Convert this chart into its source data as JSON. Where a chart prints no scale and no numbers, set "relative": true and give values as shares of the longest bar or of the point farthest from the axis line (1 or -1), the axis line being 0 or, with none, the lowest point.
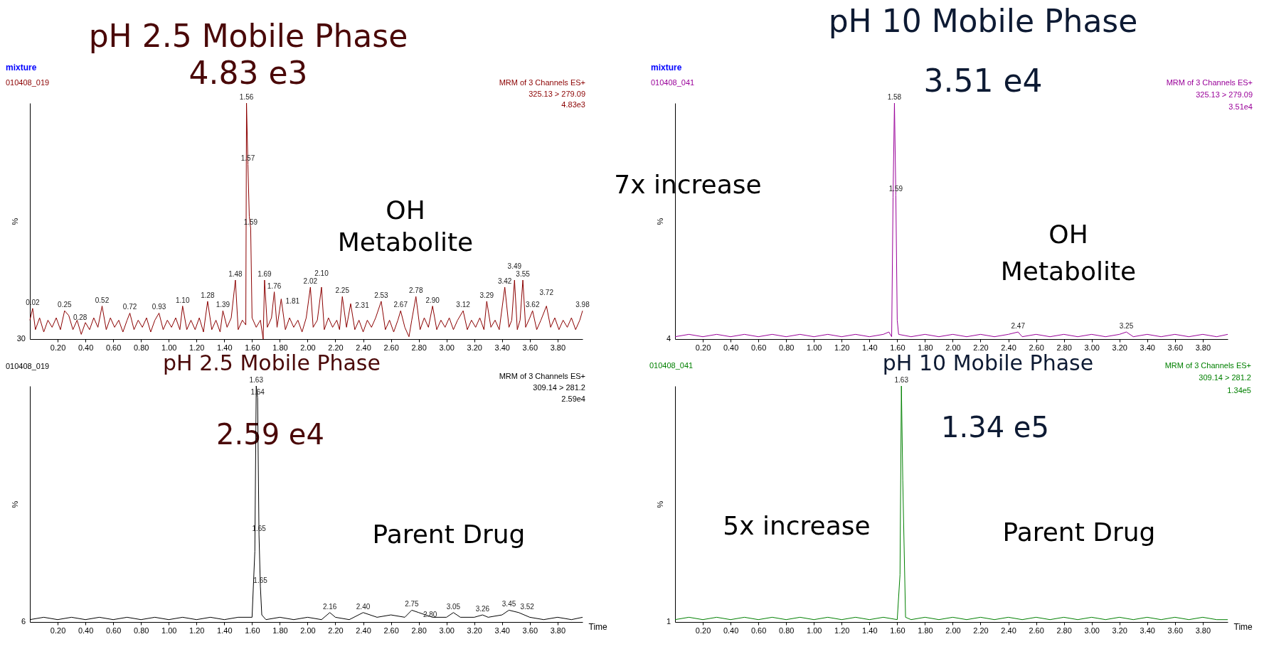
{
  "chart_data": [
    {
      "type": "line",
      "relative": true,
      "ylabel": "%",
      "xlim": [
        0,
        3.98
      ],
      "xticks": [
        {
          "value": 0.2,
          "label": "0.20"
        },
        {
          "value": 0.4,
          "label": "0.40"
        },
        {
          "value": 0.6,
          "label": "0.60"
        },
        {
          "value": 0.8,
          "label": "0.80"
        },
        {
          "value": 1.0,
          "label": "1.00"
        },
        {
          "value": 1.2,
          "label": "1.20"
        },
        {
          "value": 1.4,
          "label": "1.40"
        },
        {
          "value": 1.6,
          "label": "1.60"
        },
        {
          "value": 1.8,
          "label": "1.80"
        },
        {
          "value": 2.0,
          "label": "2.00"
        },
        {
          "value": 2.2,
          "label": "2.20"
        },
        {
          "value": 2.4,
          "label": "2.40"
        },
        {
          "value": 2.6,
          "label": "2.60"
        },
        {
          "value": 2.8,
          "label": "2.80"
        },
        {
          "value": 3.0,
          "label": "3.00"
        },
        {
          "value": 3.2,
          "label": "3.20"
        },
        {
          "value": 3.4,
          "label": "3.40"
        },
        {
          "value": 3.6,
          "label": "3.60"
        },
        {
          "value": 3.8,
          "label": "3.80"
        }
      ],
      "x": [
        0.0,
        0.02,
        0.04,
        0.07,
        0.1,
        0.13,
        0.16,
        0.19,
        0.22,
        0.25,
        0.28,
        0.31,
        0.34,
        0.37,
        0.4,
        0.43,
        0.46,
        0.49,
        0.52,
        0.55,
        0.58,
        0.61,
        0.64,
        0.67,
        0.7,
        0.72,
        0.75,
        0.78,
        0.81,
        0.84,
        0.87,
        0.9,
        0.93,
        0.96,
        0.99,
        1.02,
        1.05,
        1.08,
        1.1,
        1.13,
        1.16,
        1.19,
        1.22,
        1.25,
        1.28,
        1.31,
        1.34,
        1.37,
        1.39,
        1.42,
        1.45,
        1.48,
        1.5,
        1.53,
        1.555,
        1.56,
        1.57,
        1.58,
        1.59,
        1.6,
        1.63,
        1.66,
        1.68,
        1.69,
        1.71,
        1.74,
        1.76,
        1.78,
        1.81,
        1.84,
        1.87,
        1.9,
        1.93,
        1.96,
        1.99,
        2.02,
        2.04,
        2.07,
        2.1,
        2.12,
        2.15,
        2.18,
        2.21,
        2.23,
        2.25,
        2.28,
        2.31,
        2.34,
        2.37,
        2.4,
        2.43,
        2.46,
        2.49,
        2.53,
        2.56,
        2.59,
        2.62,
        2.65,
        2.67,
        2.7,
        2.73,
        2.75,
        2.78,
        2.81,
        2.84,
        2.87,
        2.9,
        2.93,
        2.96,
        2.99,
        3.02,
        3.05,
        3.08,
        3.12,
        3.15,
        3.18,
        3.21,
        3.24,
        3.27,
        3.29,
        3.32,
        3.35,
        3.38,
        3.42,
        3.45,
        3.47,
        3.49,
        3.51,
        3.53,
        3.55,
        3.57,
        3.6,
        3.62,
        3.65,
        3.68,
        3.72,
        3.75,
        3.78,
        3.81,
        3.84,
        3.87,
        3.9,
        3.93,
        3.96,
        3.98
      ],
      "series": [
        {
          "color": "#8b0000",
          "values": [
            0.08,
            0.13,
            0.04,
            0.09,
            0.03,
            0.08,
            0.05,
            0.09,
            0.04,
            0.12,
            0.1,
            0.04,
            0.08,
            0.02,
            0.07,
            0.04,
            0.09,
            0.05,
            0.14,
            0.04,
            0.09,
            0.05,
            0.08,
            0.03,
            0.08,
            0.11,
            0.04,
            0.08,
            0.05,
            0.09,
            0.03,
            0.08,
            0.11,
            0.04,
            0.08,
            0.05,
            0.09,
            0.04,
            0.14,
            0.04,
            0.08,
            0.04,
            0.09,
            0.03,
            0.16,
            0.04,
            0.08,
            0.03,
            0.12,
            0.05,
            0.09,
            0.25,
            0.04,
            0.08,
            0.06,
            1.0,
            0.74,
            0.52,
            0.47,
            0.09,
            0.05,
            0.08,
            0.0,
            0.25,
            0.05,
            0.09,
            0.2,
            0.05,
            0.17,
            0.04,
            0.09,
            0.05,
            0.08,
            0.03,
            0.09,
            0.22,
            0.05,
            0.08,
            0.22,
            0.04,
            0.09,
            0.05,
            0.08,
            0.04,
            0.18,
            0.05,
            0.15,
            0.04,
            0.08,
            0.03,
            0.08,
            0.05,
            0.09,
            0.16,
            0.04,
            0.08,
            0.03,
            0.08,
            0.12,
            0.05,
            0.01,
            0.08,
            0.18,
            0.04,
            0.09,
            0.05,
            0.14,
            0.04,
            0.08,
            0.05,
            0.09,
            0.04,
            0.08,
            0.12,
            0.04,
            0.08,
            0.05,
            0.09,
            0.04,
            0.16,
            0.05,
            0.08,
            0.04,
            0.22,
            0.05,
            0.08,
            0.25,
            0.04,
            0.08,
            0.25,
            0.05,
            0.09,
            0.12,
            0.04,
            0.08,
            0.14,
            0.05,
            0.09,
            0.04,
            0.08,
            0.05,
            0.09,
            0.04,
            0.08,
            0.12
          ]
        }
      ],
      "annotations": [
        "mixture",
        "010408_019",
        "MRM of 3 Channels ES+",
        "325.13 > 279.09",
        "4.83e3",
        "30",
        "pH 2.5 Mobile Phase",
        "4.83 e3",
        "OH",
        "Metabolite",
        {
          "text": "0.02",
          "x": 0.02,
          "y": 0.13
        },
        {
          "text": "0.25",
          "x": 0.25,
          "y": 0.12
        },
        {
          "text": "0.28",
          "x": 0.28,
          "y": 0.1
        },
        {
          "text": "0.52",
          "x": 0.52,
          "y": 0.14
        },
        {
          "text": "0.72",
          "x": 0.72,
          "y": 0.11
        },
        {
          "text": "0.93",
          "x": 0.93,
          "y": 0.11
        },
        {
          "text": "1.10",
          "x": 1.1,
          "y": 0.14
        },
        {
          "text": "1.28",
          "x": 1.28,
          "y": 0.16
        },
        {
          "text": "1.39",
          "x": 1.39,
          "y": 0.12
        },
        {
          "text": "1.48",
          "x": 1.48,
          "y": 0.25
        },
        {
          "text": "1.56",
          "x": 1.56,
          "y": 1.0
        },
        {
          "text": "1.57",
          "x": 1.57,
          "y": 0.74
        },
        {
          "text": "1.59",
          "x": 1.59,
          "y": 0.47
        },
        {
          "text": "1.69",
          "x": 1.69,
          "y": 0.25
        },
        {
          "text": "1.76",
          "x": 1.76,
          "y": 0.2
        },
        {
          "text": "1.81",
          "x": 1.81,
          "y": 0.17
        },
        {
          "text": "2.02",
          "x": 2.02,
          "y": 0.22
        },
        {
          "text": "2.10",
          "x": 2.1,
          "y": 0.22
        },
        {
          "text": "2.25",
          "x": 2.25,
          "y": 0.18
        },
        {
          "text": "2.31",
          "x": 2.31,
          "y": 0.15
        },
        {
          "text": "2.53",
          "x": 2.53,
          "y": 0.16
        },
        {
          "text": "2.67",
          "x": 2.67,
          "y": 0.12
        },
        {
          "text": "2.78",
          "x": 2.78,
          "y": 0.18
        },
        {
          "text": "2.90",
          "x": 2.9,
          "y": 0.14
        },
        {
          "text": "3.12",
          "x": 3.12,
          "y": 0.12
        },
        {
          "text": "3.29",
          "x": 3.29,
          "y": 0.16
        },
        {
          "text": "3.42",
          "x": 3.42,
          "y": 0.22
        },
        {
          "text": "3.49",
          "x": 3.49,
          "y": 0.25
        },
        {
          "text": "3.55",
          "x": 3.55,
          "y": 0.25
        },
        {
          "text": "3.62",
          "x": 3.62,
          "y": 0.12
        },
        {
          "text": "3.72",
          "x": 3.72,
          "y": 0.14
        },
        {
          "text": "3.98",
          "x": 3.98,
          "y": 0.12
        }
      ]
    },
    {
      "type": "line",
      "relative": true,
      "ylabel": "%",
      "xlim": [
        0,
        3.98
      ],
      "xticks": [
        {
          "value": 0.2,
          "label": "0.20"
        },
        {
          "value": 0.4,
          "label": "0.40"
        },
        {
          "value": 0.6,
          "label": "0.60"
        },
        {
          "value": 0.8,
          "label": "0.80"
        },
        {
          "value": 1.0,
          "label": "1.00"
        },
        {
          "value": 1.2,
          "label": "1.20"
        },
        {
          "value": 1.4,
          "label": "1.40"
        },
        {
          "value": 1.6,
          "label": "1.60"
        },
        {
          "value": 1.8,
          "label": "1.80"
        },
        {
          "value": 2.0,
          "label": "2.00"
        },
        {
          "value": 2.2,
          "label": "2.20"
        },
        {
          "value": 2.4,
          "label": "2.40"
        },
        {
          "value": 2.6,
          "label": "2.60"
        },
        {
          "value": 2.8,
          "label": "2.80"
        },
        {
          "value": 3.0,
          "label": "3.00"
        },
        {
          "value": 3.2,
          "label": "3.20"
        },
        {
          "value": 3.4,
          "label": "3.40"
        },
        {
          "value": 3.6,
          "label": "3.60"
        },
        {
          "value": 3.8,
          "label": "3.80"
        }
      ],
      "x": [
        0,
        0.1,
        0.2,
        0.3,
        0.4,
        0.5,
        0.6,
        0.7,
        0.8,
        0.9,
        1.0,
        1.1,
        1.2,
        1.3,
        1.4,
        1.5,
        1.54,
        1.56,
        1.57,
        1.58,
        1.59,
        1.6,
        1.61,
        1.7,
        1.8,
        1.9,
        2.0,
        2.1,
        2.2,
        2.3,
        2.4,
        2.47,
        2.5,
        2.6,
        2.7,
        2.8,
        2.9,
        3.0,
        3.1,
        3.2,
        3.25,
        3.3,
        3.4,
        3.5,
        3.6,
        3.7,
        3.8,
        3.9,
        3.98
      ],
      "series": [
        {
          "color": "#990099",
          "values": [
            0.01,
            0.02,
            0.01,
            0.02,
            0.01,
            0.02,
            0.01,
            0.02,
            0.01,
            0.02,
            0.01,
            0.02,
            0.01,
            0.02,
            0.01,
            0.02,
            0.03,
            0.01,
            0.6,
            1.0,
            0.61,
            0.08,
            0.02,
            0.01,
            0.02,
            0.01,
            0.02,
            0.01,
            0.02,
            0.01,
            0.02,
            0.03,
            0.01,
            0.02,
            0.01,
            0.02,
            0.01,
            0.02,
            0.01,
            0.02,
            0.03,
            0.01,
            0.02,
            0.01,
            0.02,
            0.01,
            0.02,
            0.01,
            0.02
          ]
        }
      ],
      "annotations": [
        "mixture",
        "010408_041",
        "MRM of 3 Channels ES+",
        "325.13 > 279.09",
        "3.51e4",
        "4",
        "pH 10 Mobile Phase",
        "3.51 e4",
        "OH",
        "Metabolite",
        "7x increase",
        {
          "text": "1.58",
          "x": 1.58,
          "y": 1.0
        },
        {
          "text": "1.59",
          "x": 1.59,
          "y": 0.61
        },
        {
          "text": "2.47",
          "x": 2.47,
          "y": 0.03
        },
        {
          "text": "3.25",
          "x": 3.25,
          "y": 0.03
        }
      ]
    },
    {
      "type": "line",
      "relative": true,
      "ylabel": "%",
      "xlabel": "Time",
      "xlim": [
        0,
        3.98
      ],
      "xticks": [
        {
          "value": 0.2,
          "label": "0.20"
        },
        {
          "value": 0.4,
          "label": "0.40"
        },
        {
          "value": 0.6,
          "label": "0.60"
        },
        {
          "value": 0.8,
          "label": "0.80"
        },
        {
          "value": 1.0,
          "label": "1.00"
        },
        {
          "value": 1.2,
          "label": "1.20"
        },
        {
          "value": 1.4,
          "label": "1.40"
        },
        {
          "value": 1.6,
          "label": "1.60"
        },
        {
          "value": 1.8,
          "label": "1.80"
        },
        {
          "value": 2.0,
          "label": "2.00"
        },
        {
          "value": 2.2,
          "label": "2.20"
        },
        {
          "value": 2.4,
          "label": "2.40"
        },
        {
          "value": 2.6,
          "label": "2.60"
        },
        {
          "value": 2.8,
          "label": "2.80"
        },
        {
          "value": 3.0,
          "label": "3.00"
        },
        {
          "value": 3.2,
          "label": "3.20"
        },
        {
          "value": 3.4,
          "label": "3.40"
        },
        {
          "value": 3.6,
          "label": "3.60"
        },
        {
          "value": 3.8,
          "label": "3.80"
        }
      ],
      "x": [
        0,
        0.1,
        0.2,
        0.3,
        0.4,
        0.5,
        0.6,
        0.7,
        0.8,
        0.9,
        1.0,
        1.1,
        1.2,
        1.3,
        1.4,
        1.5,
        1.6,
        1.62,
        1.63,
        1.64,
        1.65,
        1.66,
        1.67,
        1.7,
        1.8,
        1.9,
        2.0,
        2.1,
        2.16,
        2.2,
        2.3,
        2.4,
        2.5,
        2.6,
        2.7,
        2.75,
        2.8,
        2.9,
        3.0,
        3.05,
        3.1,
        3.2,
        3.26,
        3.3,
        3.4,
        3.45,
        3.52,
        3.6,
        3.7,
        3.8,
        3.9,
        3.98
      ],
      "series": [
        {
          "color": "#000000",
          "values": [
            0.01,
            0.02,
            0.01,
            0.02,
            0.01,
            0.02,
            0.01,
            0.02,
            0.01,
            0.02,
            0.01,
            0.02,
            0.01,
            0.02,
            0.01,
            0.02,
            0.02,
            0.3,
            1.0,
            0.95,
            0.37,
            0.15,
            0.03,
            0.01,
            0.02,
            0.01,
            0.02,
            0.01,
            0.04,
            0.02,
            0.01,
            0.04,
            0.02,
            0.03,
            0.02,
            0.05,
            0.04,
            0.02,
            0.02,
            0.04,
            0.02,
            0.02,
            0.03,
            0.02,
            0.03,
            0.05,
            0.04,
            0.02,
            0.01,
            0.02,
            0.01,
            0.02
          ]
        }
      ],
      "annotations": [
        "010408_019",
        "MRM of 3 Channels ES+",
        "309.14 > 281.2",
        "2.59e4",
        "6",
        "pH 2.5 Mobile Phase",
        "2.59 e4",
        "Parent Drug",
        {
          "text": "1.63",
          "x": 1.63,
          "y": 1.0
        },
        {
          "text": "1.64",
          "x": 1.64,
          "y": 0.95
        },
        {
          "text": "1.65",
          "x": 1.65,
          "y": 0.37
        },
        {
          "text": "1.65",
          "x": 1.66,
          "y": 0.15
        },
        {
          "text": "2.16",
          "x": 2.16,
          "y": 0.04
        },
        {
          "text": "2.40",
          "x": 2.4,
          "y": 0.04
        },
        {
          "text": "2.75",
          "x": 2.75,
          "y": 0.05
        },
        {
          "text": "2.80",
          "x": 2.8,
          "y": 0.04
        },
        {
          "text": "3.05",
          "x": 3.05,
          "y": 0.04
        },
        {
          "text": "3.26",
          "x": 3.26,
          "y": 0.03
        },
        {
          "text": "3.45",
          "x": 3.45,
          "y": 0.05
        },
        {
          "text": "3.52",
          "x": 3.52,
          "y": 0.04
        }
      ]
    },
    {
      "type": "line",
      "relative": true,
      "ylabel": "%",
      "xlabel": "Time",
      "xlim": [
        0,
        3.98
      ],
      "xticks": [
        {
          "value": 0.2,
          "label": "0.20"
        },
        {
          "value": 0.4,
          "label": "0.40"
        },
        {
          "value": 0.6,
          "label": "0.60"
        },
        {
          "value": 0.8,
          "label": "0.80"
        },
        {
          "value": 1.0,
          "label": "1.00"
        },
        {
          "value": 1.2,
          "label": "1.20"
        },
        {
          "value": 1.4,
          "label": "1.40"
        },
        {
          "value": 1.6,
          "label": "1.60"
        },
        {
          "value": 1.8,
          "label": "1.80"
        },
        {
          "value": 2.0,
          "label": "2.00"
        },
        {
          "value": 2.2,
          "label": "2.20"
        },
        {
          "value": 2.4,
          "label": "2.40"
        },
        {
          "value": 2.6,
          "label": "2.60"
        },
        {
          "value": 2.8,
          "label": "2.80"
        },
        {
          "value": 3.0,
          "label": "3.00"
        },
        {
          "value": 3.2,
          "label": "3.20"
        },
        {
          "value": 3.4,
          "label": "3.40"
        },
        {
          "value": 3.6,
          "label": "3.60"
        },
        {
          "value": 3.8,
          "label": "3.80"
        }
      ],
      "x": [
        0,
        0.1,
        0.2,
        0.3,
        0.4,
        0.5,
        0.6,
        0.7,
        0.8,
        0.9,
        1.0,
        1.1,
        1.2,
        1.3,
        1.4,
        1.5,
        1.6,
        1.62,
        1.63,
        1.64,
        1.66,
        1.7,
        1.8,
        1.9,
        2.0,
        2.1,
        2.2,
        2.3,
        2.4,
        2.5,
        2.6,
        2.7,
        2.8,
        2.9,
        3.0,
        3.1,
        3.2,
        3.3,
        3.4,
        3.5,
        3.6,
        3.7,
        3.8,
        3.9,
        3.98
      ],
      "series": [
        {
          "color": "#008000",
          "values": [
            0.01,
            0.02,
            0.01,
            0.02,
            0.01,
            0.02,
            0.01,
            0.02,
            0.01,
            0.02,
            0.01,
            0.02,
            0.01,
            0.02,
            0.01,
            0.02,
            0.01,
            0.2,
            1.0,
            0.6,
            0.02,
            0.01,
            0.02,
            0.01,
            0.02,
            0.01,
            0.02,
            0.01,
            0.02,
            0.01,
            0.02,
            0.01,
            0.02,
            0.01,
            0.02,
            0.01,
            0.02,
            0.01,
            0.02,
            0.01,
            0.02,
            0.01,
            0.02,
            0.01,
            0.01
          ]
        }
      ],
      "annotations": [
        "010408_041",
        "MRM of 3 Channels ES+",
        "309.14 > 281.2",
        "1.34e5",
        "1",
        "pH 10 Mobile Phase",
        "1.34 e5",
        "Parent Drug",
        "5x increase",
        {
          "text": "1.63",
          "x": 1.63,
          "y": 1.0
        }
      ]
    }
  ]
}
